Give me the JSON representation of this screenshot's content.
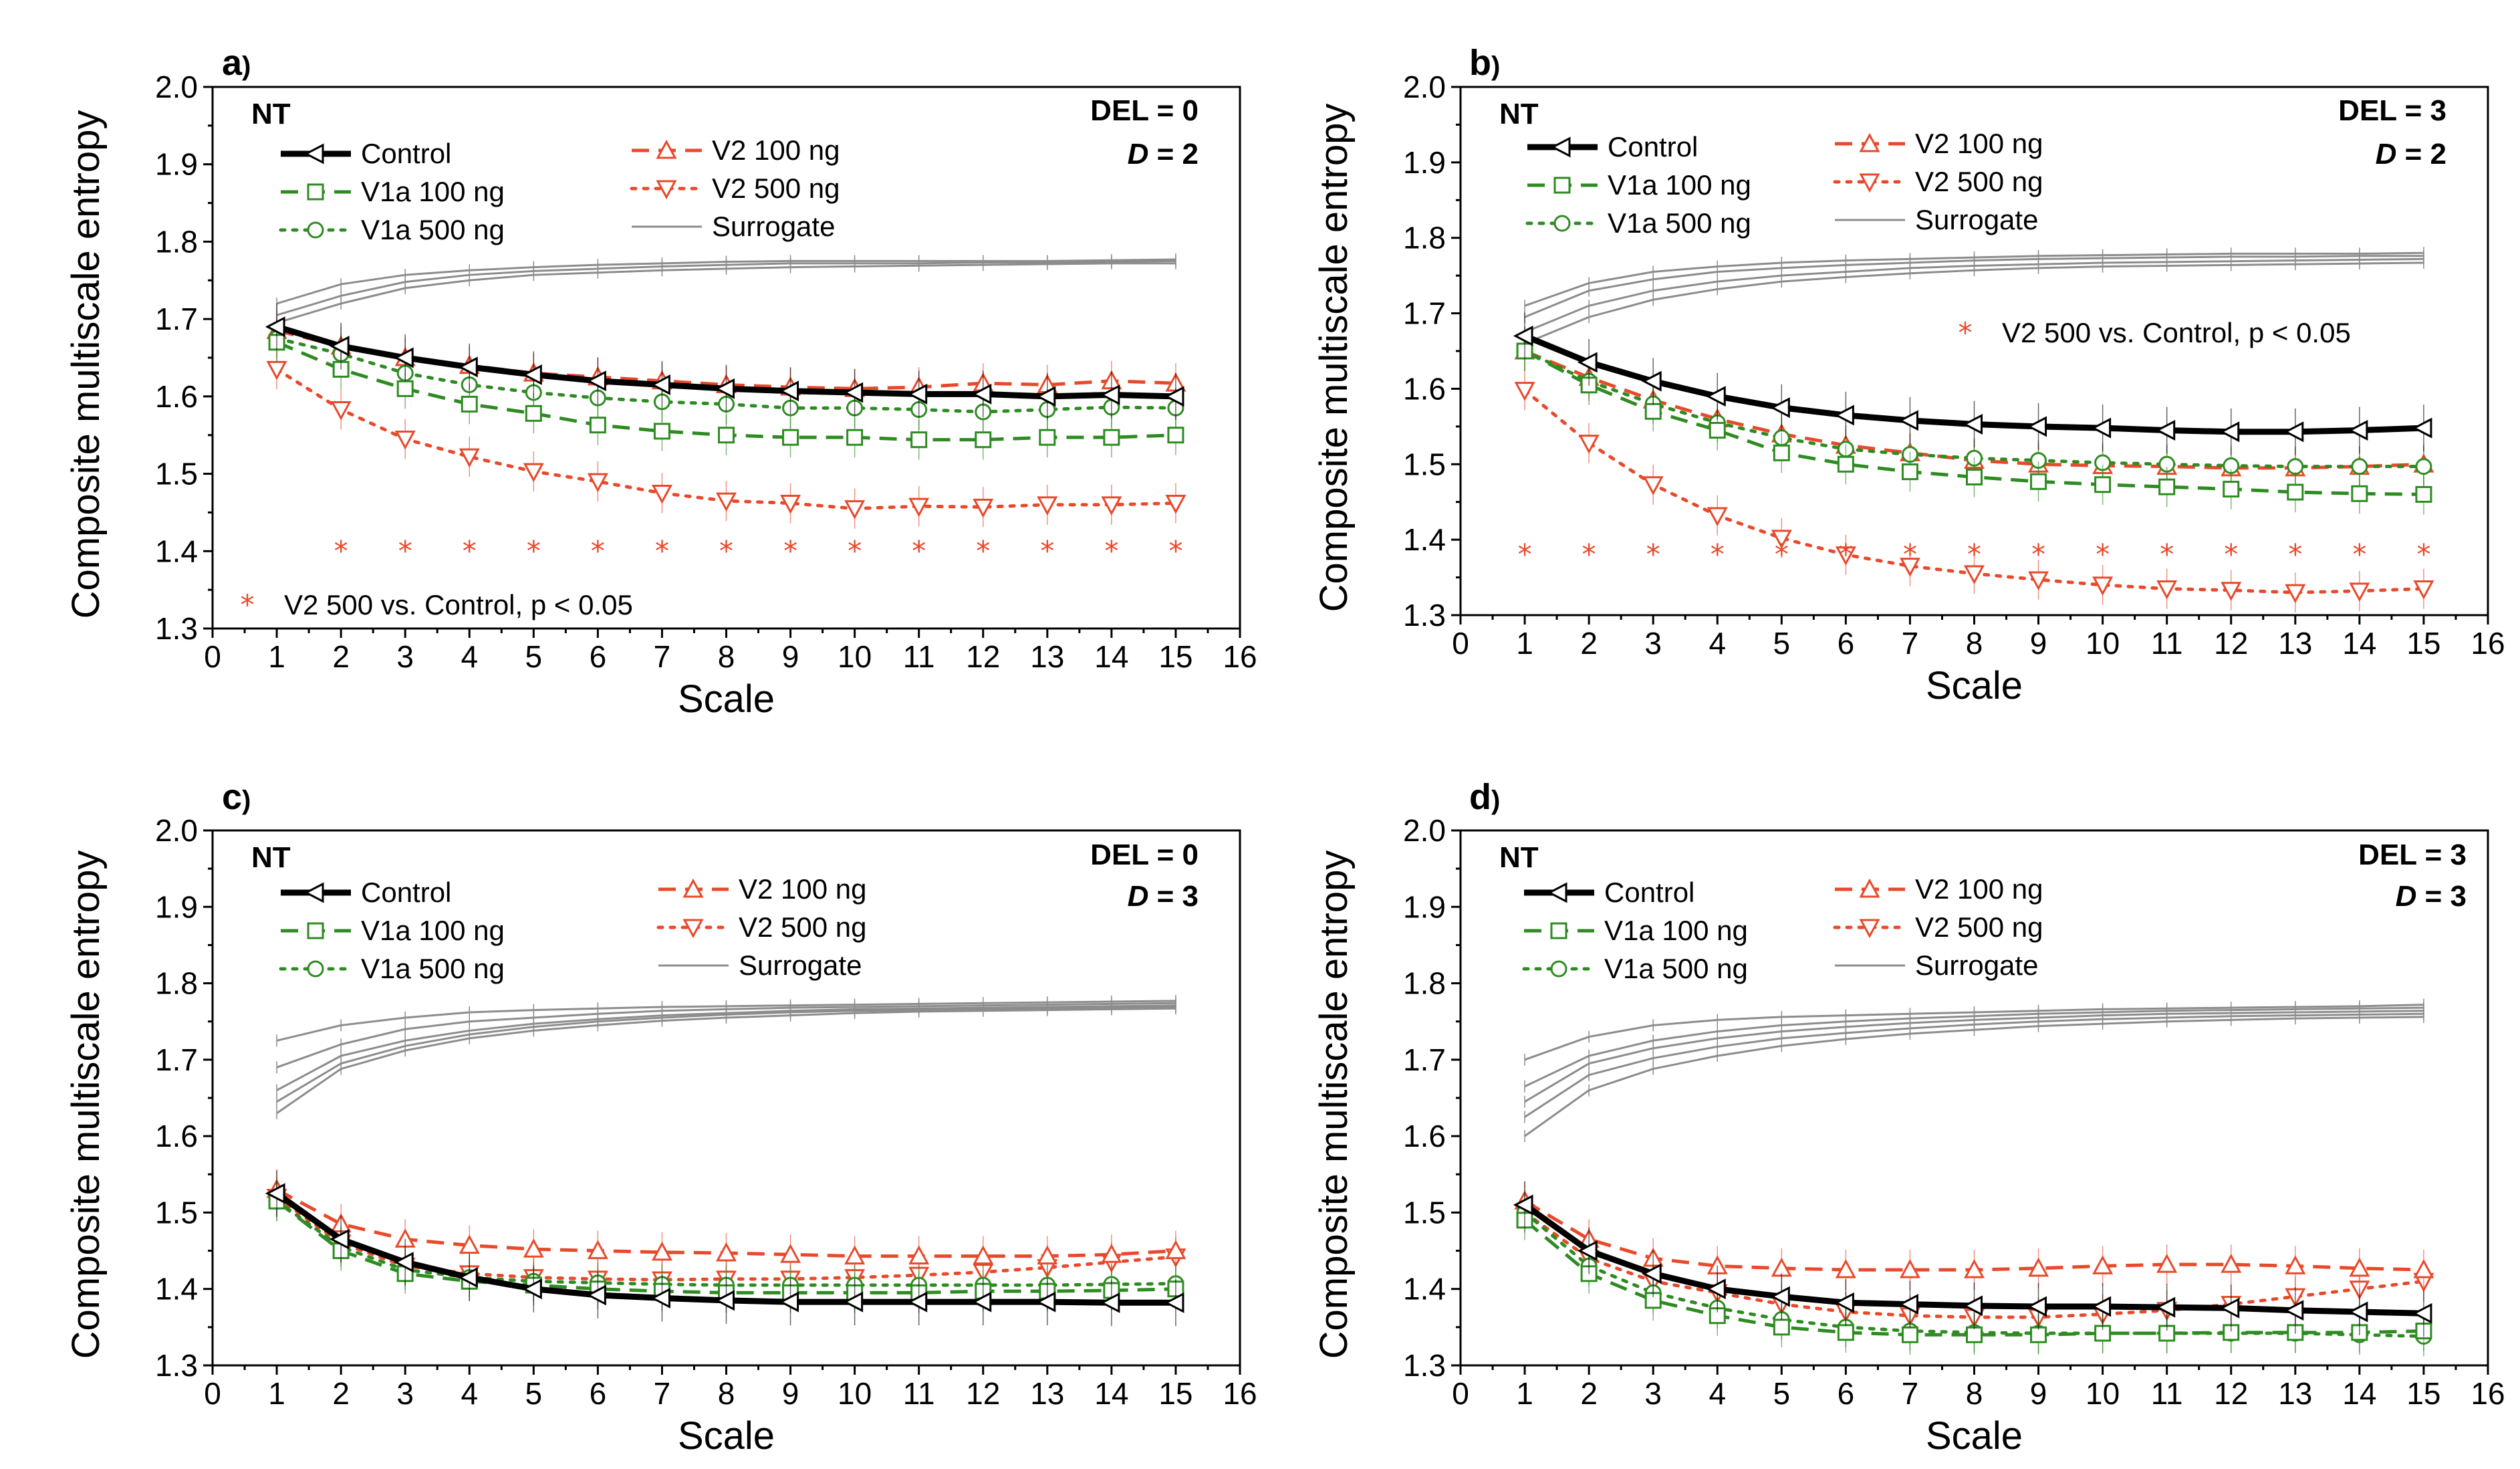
{
  "figure": {
    "series_styles": {
      "Control": {
        "color": "#000000",
        "dash": "",
        "marker": "triangle-left"
      },
      "V1a 100 ng": {
        "color": "#2e8b22",
        "dash": "dashed",
        "marker": "square"
      },
      "V1a 500 ng": {
        "color": "#2e8b22",
        "dash": "dotted",
        "marker": "circle"
      },
      "V2 100 ng": {
        "color": "#e8492b",
        "dash": "dashed",
        "marker": "triangle-up"
      },
      "V2 500 ng": {
        "color": "#e8492b",
        "dash": "dotted",
        "marker": "triangle-down"
      },
      "Surrogate": {
        "color": "#8c8c8c",
        "dash": "",
        "marker": "none"
      }
    },
    "sig_marker_color": "#e8492b"
  },
  "chart_data": [
    {
      "type": "line",
      "panel_label": "a",
      "panel_label_suffix": ")",
      "group_label": "NT",
      "del_text": "DEL = 0",
      "d_symbol": "D",
      "d_text": " = 2",
      "xlabel": "Scale",
      "ylabel": "Composite multiscale entropy",
      "xlim": [
        0,
        16
      ],
      "ylim": [
        1.3,
        2.0
      ],
      "xticks": [
        "0",
        "1",
        "2",
        "3",
        "4",
        "5",
        "6",
        "7",
        "8",
        "9",
        "10",
        "11",
        "12",
        "13",
        "14",
        "15",
        "16"
      ],
      "yticks": [
        "1.3",
        "1.4",
        "1.5",
        "1.6",
        "1.7",
        "1.8",
        "1.9",
        "2.0"
      ],
      "x": [
        1,
        2,
        3,
        4,
        5,
        6,
        7,
        8,
        9,
        10,
        11,
        12,
        13,
        14,
        15
      ],
      "series": [
        {
          "name": "Control",
          "values": [
            1.69,
            1.665,
            1.65,
            1.638,
            1.628,
            1.62,
            1.615,
            1.61,
            1.607,
            1.605,
            1.603,
            1.603,
            1.6,
            1.602,
            1.6
          ]
        },
        {
          "name": "V1a 100 ng",
          "values": [
            1.67,
            1.635,
            1.61,
            1.59,
            1.578,
            1.563,
            1.555,
            1.55,
            1.547,
            1.547,
            1.544,
            1.544,
            1.547,
            1.547,
            1.55
          ]
        },
        {
          "name": "V1a 500 ng",
          "values": [
            1.675,
            1.655,
            1.63,
            1.615,
            1.605,
            1.598,
            1.593,
            1.59,
            1.585,
            1.585,
            1.583,
            1.58,
            1.583,
            1.586,
            1.585
          ]
        },
        {
          "name": "V2 100 ng",
          "values": [
            1.685,
            1.665,
            1.65,
            1.64,
            1.63,
            1.625,
            1.62,
            1.615,
            1.612,
            1.61,
            1.612,
            1.617,
            1.615,
            1.62,
            1.617
          ]
        },
        {
          "name": "V2 500 ng",
          "values": [
            1.635,
            1.583,
            1.545,
            1.522,
            1.503,
            1.49,
            1.475,
            1.465,
            1.462,
            1.455,
            1.458,
            1.457,
            1.46,
            1.46,
            1.462
          ]
        }
      ],
      "surrogate_series": [
        [
          1.72,
          1.745,
          1.757,
          1.763,
          1.767,
          1.77,
          1.772,
          1.774,
          1.775,
          1.775,
          1.775,
          1.775,
          1.775,
          1.776,
          1.777
        ],
        [
          1.705,
          1.73,
          1.748,
          1.757,
          1.762,
          1.765,
          1.768,
          1.77,
          1.772,
          1.772,
          1.772,
          1.773,
          1.773,
          1.774,
          1.775
        ],
        [
          1.695,
          1.72,
          1.74,
          1.75,
          1.757,
          1.76,
          1.763,
          1.765,
          1.767,
          1.768,
          1.769,
          1.77,
          1.771,
          1.772,
          1.772
        ]
      ],
      "sig_x": [
        2,
        3,
        4,
        5,
        6,
        7,
        8,
        9,
        10,
        11,
        12,
        13,
        14,
        15
      ],
      "sig_y": 1.4,
      "sig_note": "V2 500 vs. Control, p < 0.05",
      "legend": {
        "col1": [
          "Control",
          "V1a 100 ng",
          "V1a 500 ng"
        ],
        "col2": [
          "V2 100 ng",
          "V2 500 ng",
          "Surrogate"
        ]
      }
    },
    {
      "type": "line",
      "panel_label": "b",
      "panel_label_suffix": ")",
      "group_label": "NT",
      "del_text": "DEL = 3",
      "d_symbol": "D",
      "d_text": " = 2",
      "xlabel": "Scale",
      "ylabel": "Composite multiscale entropy",
      "xlim": [
        0,
        16
      ],
      "ylim": [
        1.3,
        2.0
      ],
      "xticks": [
        "0",
        "1",
        "2",
        "3",
        "4",
        "5",
        "6",
        "7",
        "8",
        "9",
        "10",
        "11",
        "12",
        "13",
        "14",
        "15",
        "16"
      ],
      "yticks": [
        "1.3",
        "1.4",
        "1.5",
        "1.6",
        "1.7",
        "1.8",
        "1.9",
        "2.0"
      ],
      "x": [
        1,
        2,
        3,
        4,
        5,
        6,
        7,
        8,
        9,
        10,
        11,
        12,
        13,
        14,
        15
      ],
      "series": [
        {
          "name": "Control",
          "values": [
            1.67,
            1.635,
            1.61,
            1.59,
            1.575,
            1.565,
            1.558,
            1.553,
            1.55,
            1.548,
            1.545,
            1.543,
            1.543,
            1.545,
            1.548
          ]
        },
        {
          "name": "V1a 100 ng",
          "values": [
            1.65,
            1.605,
            1.57,
            1.545,
            1.515,
            1.5,
            1.49,
            1.483,
            1.477,
            1.473,
            1.47,
            1.467,
            1.463,
            1.461,
            1.46
          ]
        },
        {
          "name": "V1a 500 ng",
          "values": [
            1.65,
            1.61,
            1.58,
            1.555,
            1.535,
            1.52,
            1.513,
            1.508,
            1.505,
            1.502,
            1.5,
            1.498,
            1.497,
            1.497,
            1.497
          ]
        },
        {
          "name": "V2 100 ng",
          "values": [
            1.65,
            1.615,
            1.585,
            1.56,
            1.54,
            1.525,
            1.515,
            1.505,
            1.5,
            1.498,
            1.497,
            1.495,
            1.495,
            1.497,
            1.5
          ]
        },
        {
          "name": "V2 500 ng",
          "values": [
            1.598,
            1.528,
            1.473,
            1.432,
            1.402,
            1.38,
            1.365,
            1.355,
            1.347,
            1.34,
            1.335,
            1.333,
            1.33,
            1.332,
            1.335
          ]
        }
      ],
      "surrogate_series": [
        [
          1.71,
          1.74,
          1.755,
          1.762,
          1.767,
          1.77,
          1.772,
          1.774,
          1.776,
          1.777,
          1.778,
          1.779,
          1.779,
          1.779,
          1.78
        ],
        [
          1.695,
          1.73,
          1.745,
          1.755,
          1.76,
          1.764,
          1.767,
          1.77,
          1.772,
          1.773,
          1.774,
          1.775,
          1.775,
          1.776,
          1.776
        ],
        [
          1.675,
          1.71,
          1.73,
          1.742,
          1.75,
          1.755,
          1.76,
          1.763,
          1.765,
          1.767,
          1.768,
          1.769,
          1.77,
          1.771,
          1.772
        ],
        [
          1.66,
          1.695,
          1.718,
          1.732,
          1.742,
          1.748,
          1.753,
          1.757,
          1.76,
          1.762,
          1.763,
          1.764,
          1.765,
          1.766,
          1.767
        ]
      ],
      "sig_x": [
        1,
        2,
        3,
        4,
        5,
        6,
        7,
        8,
        9,
        10,
        11,
        12,
        13,
        14,
        15
      ],
      "sig_y": 1.38,
      "sig_note": "V2 500 vs. Control, p < 0.05",
      "legend": {
        "col1": [
          "Control",
          "V1a 100 ng",
          "V1a 500 ng"
        ],
        "col2": [
          "V2 100 ng",
          "V2 500 ng",
          "Surrogate"
        ]
      }
    },
    {
      "type": "line",
      "panel_label": "c",
      "panel_label_suffix": ")",
      "group_label": "NT",
      "del_text": "DEL = 0",
      "d_symbol": "D",
      "d_text": " = 3",
      "xlabel": "Scale",
      "ylabel": "Composite multiscale entropy",
      "xlim": [
        0,
        16
      ],
      "ylim": [
        1.3,
        2.0
      ],
      "xticks": [
        "0",
        "1",
        "2",
        "3",
        "4",
        "5",
        "6",
        "7",
        "8",
        "9",
        "10",
        "11",
        "12",
        "13",
        "14",
        "15",
        "16"
      ],
      "yticks": [
        "1.3",
        "1.4",
        "1.5",
        "1.6",
        "1.7",
        "1.8",
        "1.9",
        "2.0"
      ],
      "x": [
        1,
        2,
        3,
        4,
        5,
        6,
        7,
        8,
        9,
        10,
        11,
        12,
        13,
        14,
        15
      ],
      "series": [
        {
          "name": "Control",
          "values": [
            1.525,
            1.465,
            1.435,
            1.415,
            1.4,
            1.392,
            1.388,
            1.385,
            1.383,
            1.383,
            1.383,
            1.383,
            1.383,
            1.382,
            1.382
          ]
        },
        {
          "name": "V1a 100 ng",
          "values": [
            1.515,
            1.45,
            1.42,
            1.41,
            1.405,
            1.4,
            1.397,
            1.395,
            1.395,
            1.395,
            1.395,
            1.397,
            1.397,
            1.398,
            1.4
          ]
        },
        {
          "name": "V1a 500 ng",
          "values": [
            1.515,
            1.455,
            1.425,
            1.415,
            1.41,
            1.408,
            1.406,
            1.405,
            1.405,
            1.405,
            1.405,
            1.405,
            1.405,
            1.406,
            1.407
          ]
        },
        {
          "name": "V2 100 ng",
          "values": [
            1.53,
            1.485,
            1.465,
            1.457,
            1.452,
            1.45,
            1.448,
            1.447,
            1.445,
            1.443,
            1.443,
            1.443,
            1.443,
            1.445,
            1.45
          ]
        },
        {
          "name": "V2 500 ng",
          "values": [
            1.52,
            1.46,
            1.43,
            1.42,
            1.415,
            1.413,
            1.412,
            1.413,
            1.413,
            1.415,
            1.418,
            1.422,
            1.428,
            1.435,
            1.442
          ]
        }
      ],
      "surrogate_series": [
        [
          1.725,
          1.745,
          1.755,
          1.762,
          1.765,
          1.767,
          1.769,
          1.77,
          1.771,
          1.772,
          1.773,
          1.774,
          1.775,
          1.776,
          1.777
        ],
        [
          1.69,
          1.72,
          1.74,
          1.75,
          1.755,
          1.76,
          1.764,
          1.766,
          1.768,
          1.769,
          1.77,
          1.771,
          1.772,
          1.773,
          1.774
        ],
        [
          1.66,
          1.705,
          1.725,
          1.738,
          1.747,
          1.753,
          1.758,
          1.761,
          1.764,
          1.766,
          1.767,
          1.768,
          1.769,
          1.77,
          1.771
        ],
        [
          1.645,
          1.695,
          1.718,
          1.733,
          1.743,
          1.75,
          1.755,
          1.759,
          1.762,
          1.764,
          1.765,
          1.766,
          1.767,
          1.768,
          1.769
        ],
        [
          1.63,
          1.688,
          1.712,
          1.728,
          1.738,
          1.745,
          1.751,
          1.755,
          1.758,
          1.761,
          1.763,
          1.764,
          1.765,
          1.766,
          1.767
        ]
      ],
      "sig_x": [],
      "sig_y": null,
      "sig_note": "",
      "legend": {
        "col1": [
          "Control",
          "V1a 100 ng",
          "V1a 500 ng"
        ],
        "col2": [
          "V2 100 ng",
          "V2 500 ng",
          "Surrogate"
        ]
      }
    },
    {
      "type": "line",
      "panel_label": "d",
      "panel_label_suffix": ")",
      "group_label": "NT",
      "del_text": "DEL = 3",
      "d_symbol": "D",
      "d_text": " = 3",
      "xlabel": "Scale",
      "ylabel": "Composite multiscale entropy",
      "xlim": [
        0,
        16
      ],
      "ylim": [
        1.3,
        2.0
      ],
      "xticks": [
        "0",
        "1",
        "2",
        "3",
        "4",
        "5",
        "6",
        "7",
        "8",
        "9",
        "10",
        "11",
        "12",
        "13",
        "14",
        "15",
        "16"
      ],
      "yticks": [
        "1.3",
        "1.4",
        "1.5",
        "1.6",
        "1.7",
        "1.8",
        "1.9",
        "2.0"
      ],
      "x": [
        1,
        2,
        3,
        4,
        5,
        6,
        7,
        8,
        9,
        10,
        11,
        12,
        13,
        14,
        15
      ],
      "series": [
        {
          "name": "Control",
          "values": [
            1.51,
            1.45,
            1.42,
            1.4,
            1.39,
            1.382,
            1.38,
            1.378,
            1.377,
            1.377,
            1.376,
            1.375,
            1.372,
            1.37,
            1.368
          ]
        },
        {
          "name": "V1a 100 ng",
          "values": [
            1.49,
            1.42,
            1.385,
            1.365,
            1.35,
            1.343,
            1.34,
            1.34,
            1.34,
            1.342,
            1.342,
            1.343,
            1.343,
            1.343,
            1.345
          ]
        },
        {
          "name": "V1a 500 ng",
          "values": [
            1.5,
            1.43,
            1.395,
            1.375,
            1.36,
            1.35,
            1.345,
            1.343,
            1.342,
            1.342,
            1.342,
            1.342,
            1.342,
            1.34,
            1.338
          ]
        },
        {
          "name": "V2 100 ng",
          "values": [
            1.515,
            1.465,
            1.44,
            1.43,
            1.427,
            1.425,
            1.425,
            1.425,
            1.427,
            1.43,
            1.432,
            1.432,
            1.43,
            1.427,
            1.425
          ]
        },
        {
          "name": "V2 500 ng",
          "values": [
            1.5,
            1.44,
            1.41,
            1.395,
            1.38,
            1.37,
            1.365,
            1.363,
            1.363,
            1.367,
            1.372,
            1.38,
            1.39,
            1.4,
            1.41
          ]
        }
      ],
      "surrogate_series": [
        [
          1.7,
          1.73,
          1.745,
          1.752,
          1.756,
          1.758,
          1.76,
          1.762,
          1.764,
          1.766,
          1.767,
          1.768,
          1.769,
          1.77,
          1.772
        ],
        [
          1.665,
          1.705,
          1.725,
          1.737,
          1.745,
          1.75,
          1.754,
          1.757,
          1.76,
          1.762,
          1.764,
          1.765,
          1.766,
          1.767,
          1.768
        ],
        [
          1.645,
          1.695,
          1.715,
          1.728,
          1.737,
          1.743,
          1.748,
          1.752,
          1.755,
          1.758,
          1.76,
          1.761,
          1.762,
          1.763,
          1.764
        ],
        [
          1.625,
          1.68,
          1.702,
          1.717,
          1.728,
          1.735,
          1.741,
          1.746,
          1.75,
          1.753,
          1.755,
          1.757,
          1.758,
          1.759,
          1.76
        ],
        [
          1.6,
          1.66,
          1.688,
          1.705,
          1.718,
          1.727,
          1.734,
          1.739,
          1.744,
          1.747,
          1.75,
          1.752,
          1.754,
          1.755,
          1.756
        ]
      ],
      "sig_x": [],
      "sig_y": null,
      "sig_note": "",
      "legend": {
        "col1": [
          "Control",
          "V1a 100 ng",
          "V1a 500 ng"
        ],
        "col2": [
          "V2 100 ng",
          "V2 500 ng",
          "Surrogate"
        ]
      }
    }
  ]
}
